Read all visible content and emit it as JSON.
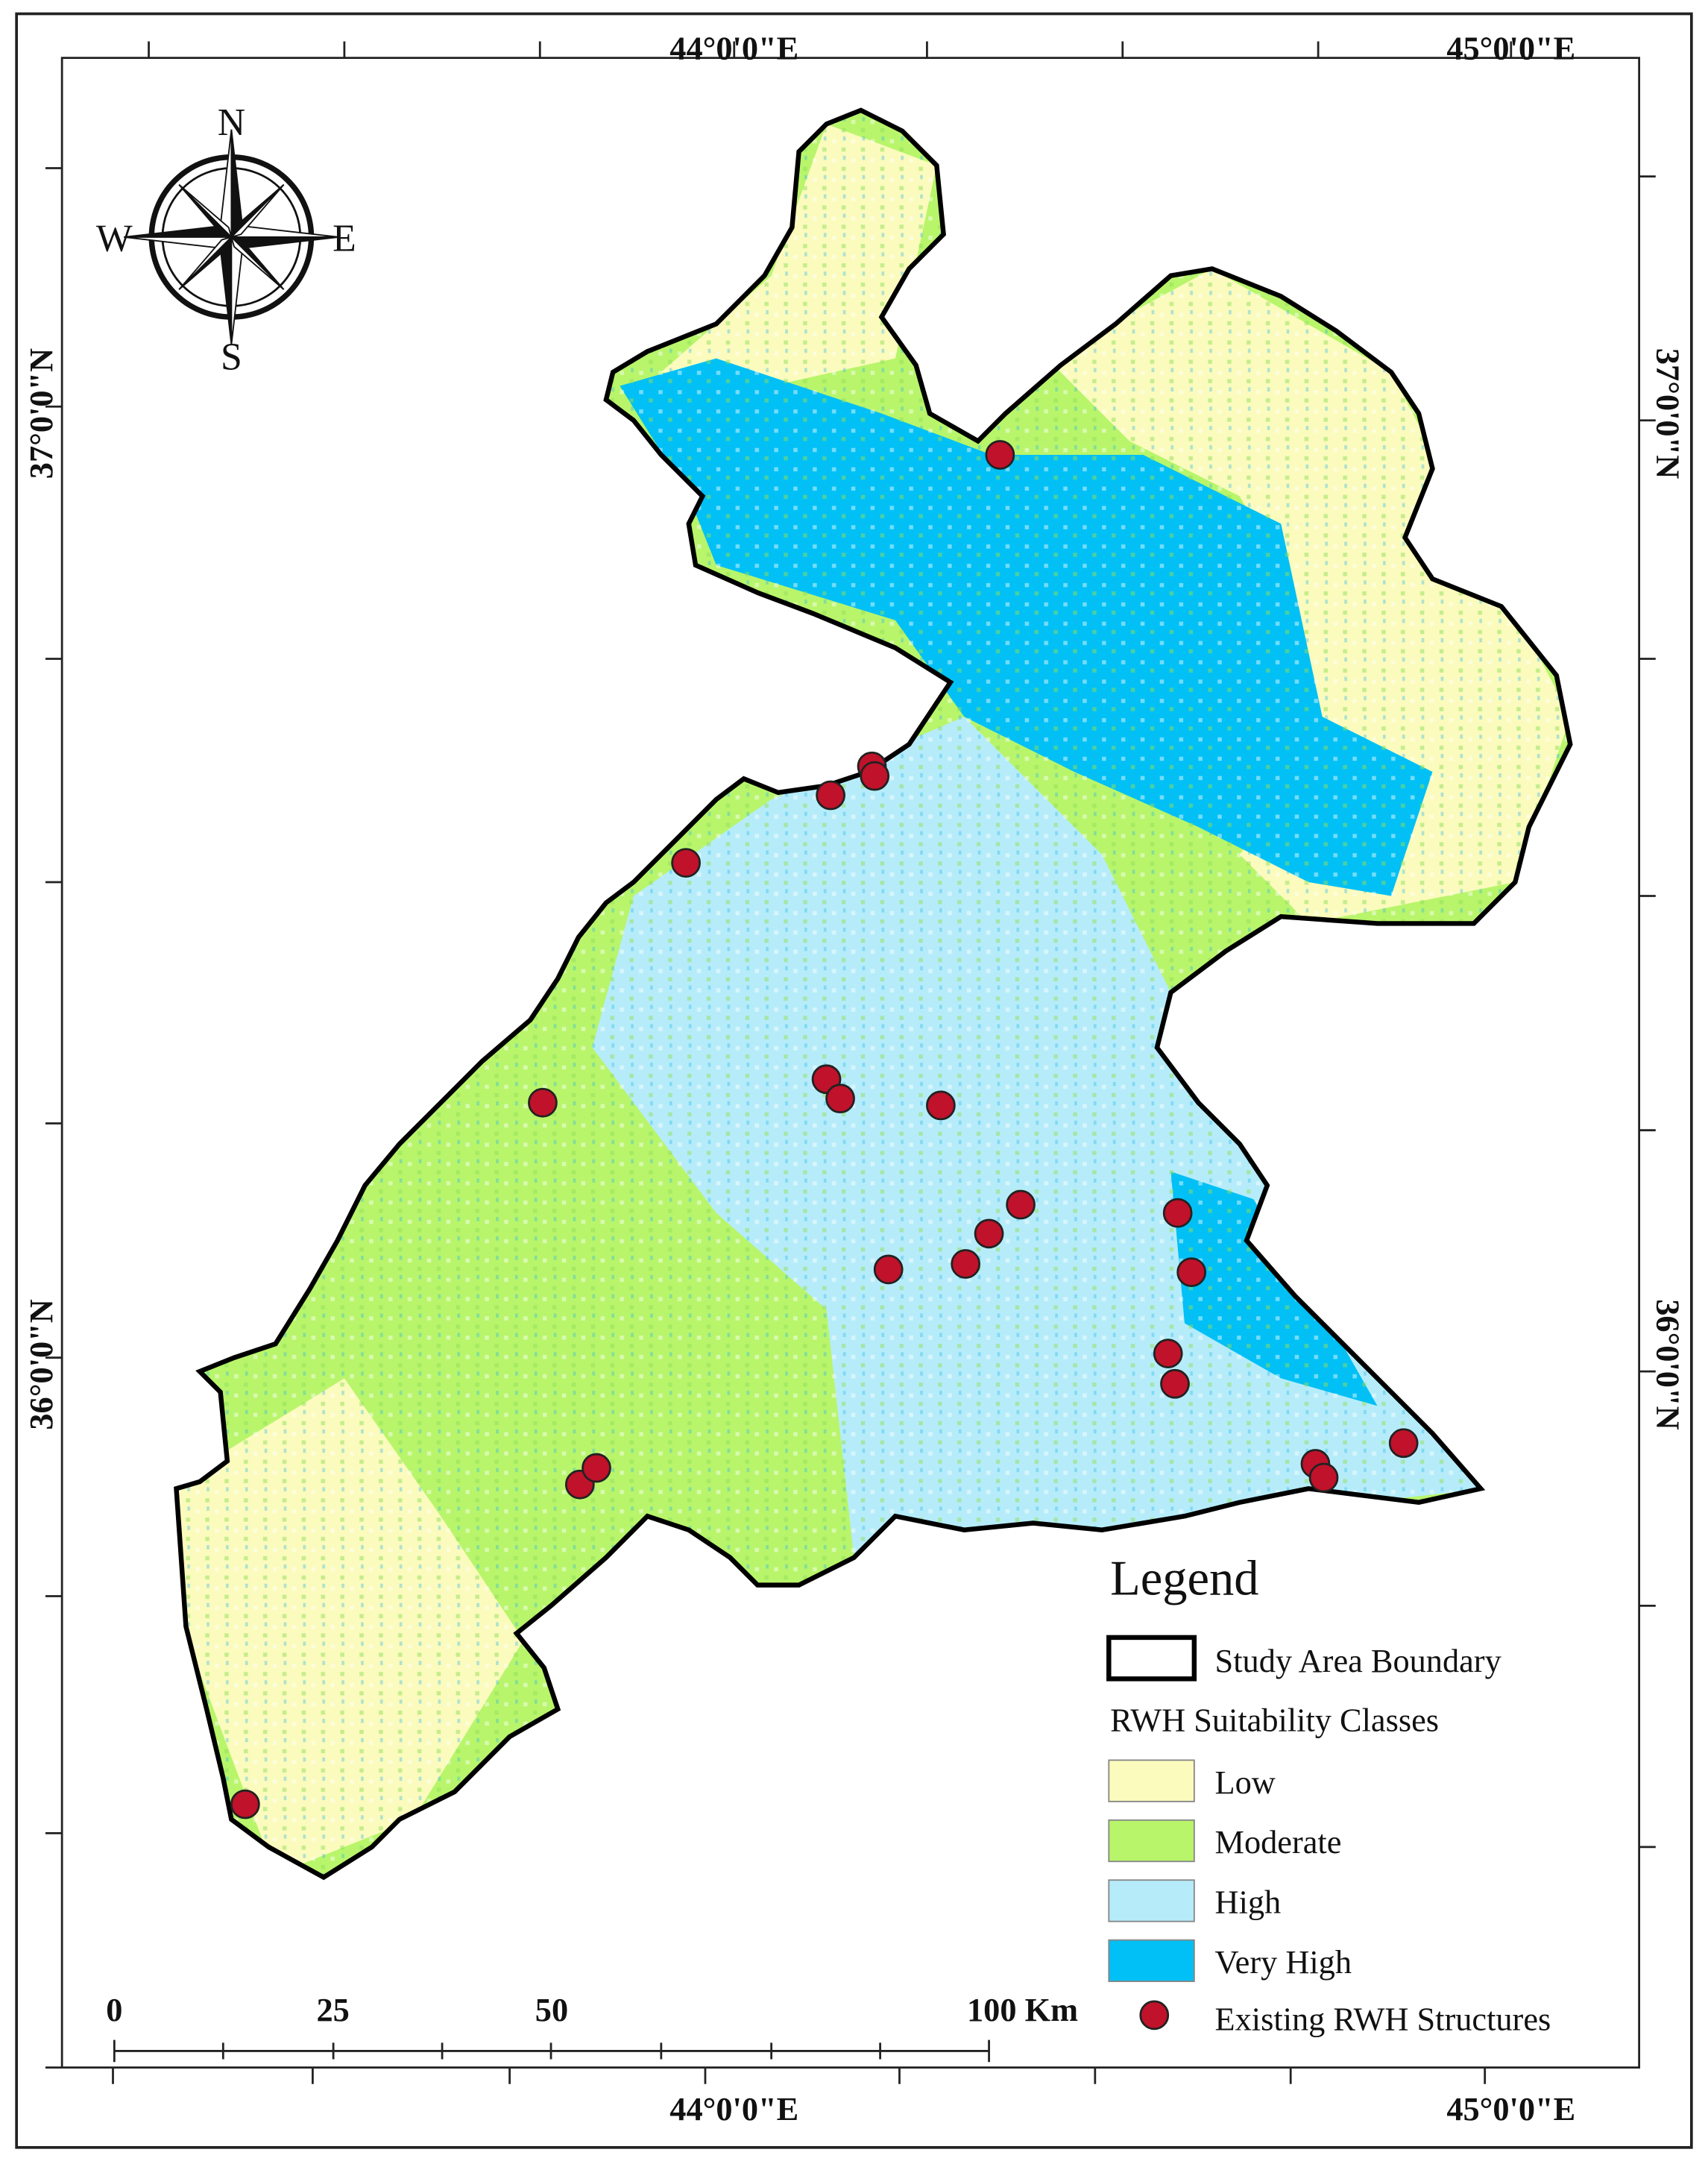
{
  "graticule": {
    "top": [
      "44°0'0\"E",
      "45°0'0\"E"
    ],
    "bottom": [
      "44°0'0\"E",
      "45°0'0\"E"
    ],
    "left": [
      "37°0'0\"N",
      "36°0'0\"N"
    ],
    "right": [
      "37°0'0\"N",
      "36°0'0\"N"
    ]
  },
  "compass": {
    "n": "N",
    "e": "E",
    "s": "S",
    "w": "W"
  },
  "legend": {
    "title": "Legend",
    "boundary": "Study Area Boundary",
    "classes_title": "RWH Suitability Classes",
    "classes": [
      {
        "label": "Low",
        "color": "#fbfbbd"
      },
      {
        "label": "Moderate",
        "color": "#b8f56b"
      },
      {
        "label": "High",
        "color": "#b6ecfa"
      },
      {
        "label": "Very High",
        "color": "#00c0f5"
      }
    ],
    "structures": "Existing RWH Structures",
    "structures_color": "#c0122a"
  },
  "scale_bar": {
    "labels": [
      0,
      25,
      50,
      100
    ],
    "unit": "Km"
  }
}
